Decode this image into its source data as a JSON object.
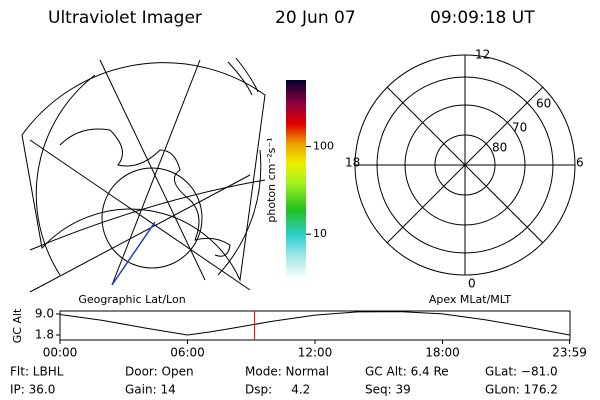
{
  "header": {
    "title": "Ultraviolet Imager",
    "date": "20 Jun 07",
    "time": "09:09:18 UT"
  },
  "colorbar": {
    "label": "photon cm⁻²s⁻¹",
    "log": true,
    "ylim": [
      3,
      575
    ],
    "yticks": [
      10,
      100
    ]
  },
  "left_panel": {
    "label": "Geographic Lat/Lon"
  },
  "right_panel": {
    "label": "Apex MLat/MLT",
    "mlt_labels": [
      "12",
      "18",
      "6",
      "0"
    ],
    "lat_labels": [
      "60",
      "70",
      "80"
    ]
  },
  "chart_data": {
    "type": "line",
    "ylabel": "GC Alt",
    "x": [
      0,
      2,
      4,
      5,
      6,
      7,
      8,
      10,
      12,
      14,
      16,
      18,
      20,
      22,
      23.98
    ],
    "series": [
      {
        "name": "GC Alt",
        "color": "#000000",
        "values": [
          8.8,
          6.8,
          4.2,
          3.0,
          1.8,
          2.8,
          4.0,
          6.5,
          8.6,
          9.7,
          9.8,
          9.0,
          7.0,
          4.5,
          1.8
        ]
      }
    ],
    "xlim": [
      0,
      24
    ],
    "ylim": [
      0.1,
      10.0
    ],
    "xticks": [
      {
        "value": 0,
        "label": "00:00"
      },
      {
        "value": 6,
        "label": "06:00"
      },
      {
        "value": 12,
        "label": "12:00"
      },
      {
        "value": 18,
        "label": "18:00"
      },
      {
        "value": 23.98,
        "label": "23:59"
      }
    ],
    "yticks": [
      1.8,
      {
        "value": 9,
        "label": "9.0"
      }
    ],
    "marker_x": 9.155,
    "marker_color": "#ff0000"
  },
  "footer": [
    [
      "Flt: LBHL",
      "Door: Open",
      "Mode: Normal",
      "GC Alt: 6.4 Re",
      "GLat: −81.0"
    ],
    [
      "IP: 36.0",
      "Gain: 14",
      "Dsp:     4.2",
      "Seq: 39",
      "GLon: 176.2"
    ]
  ]
}
